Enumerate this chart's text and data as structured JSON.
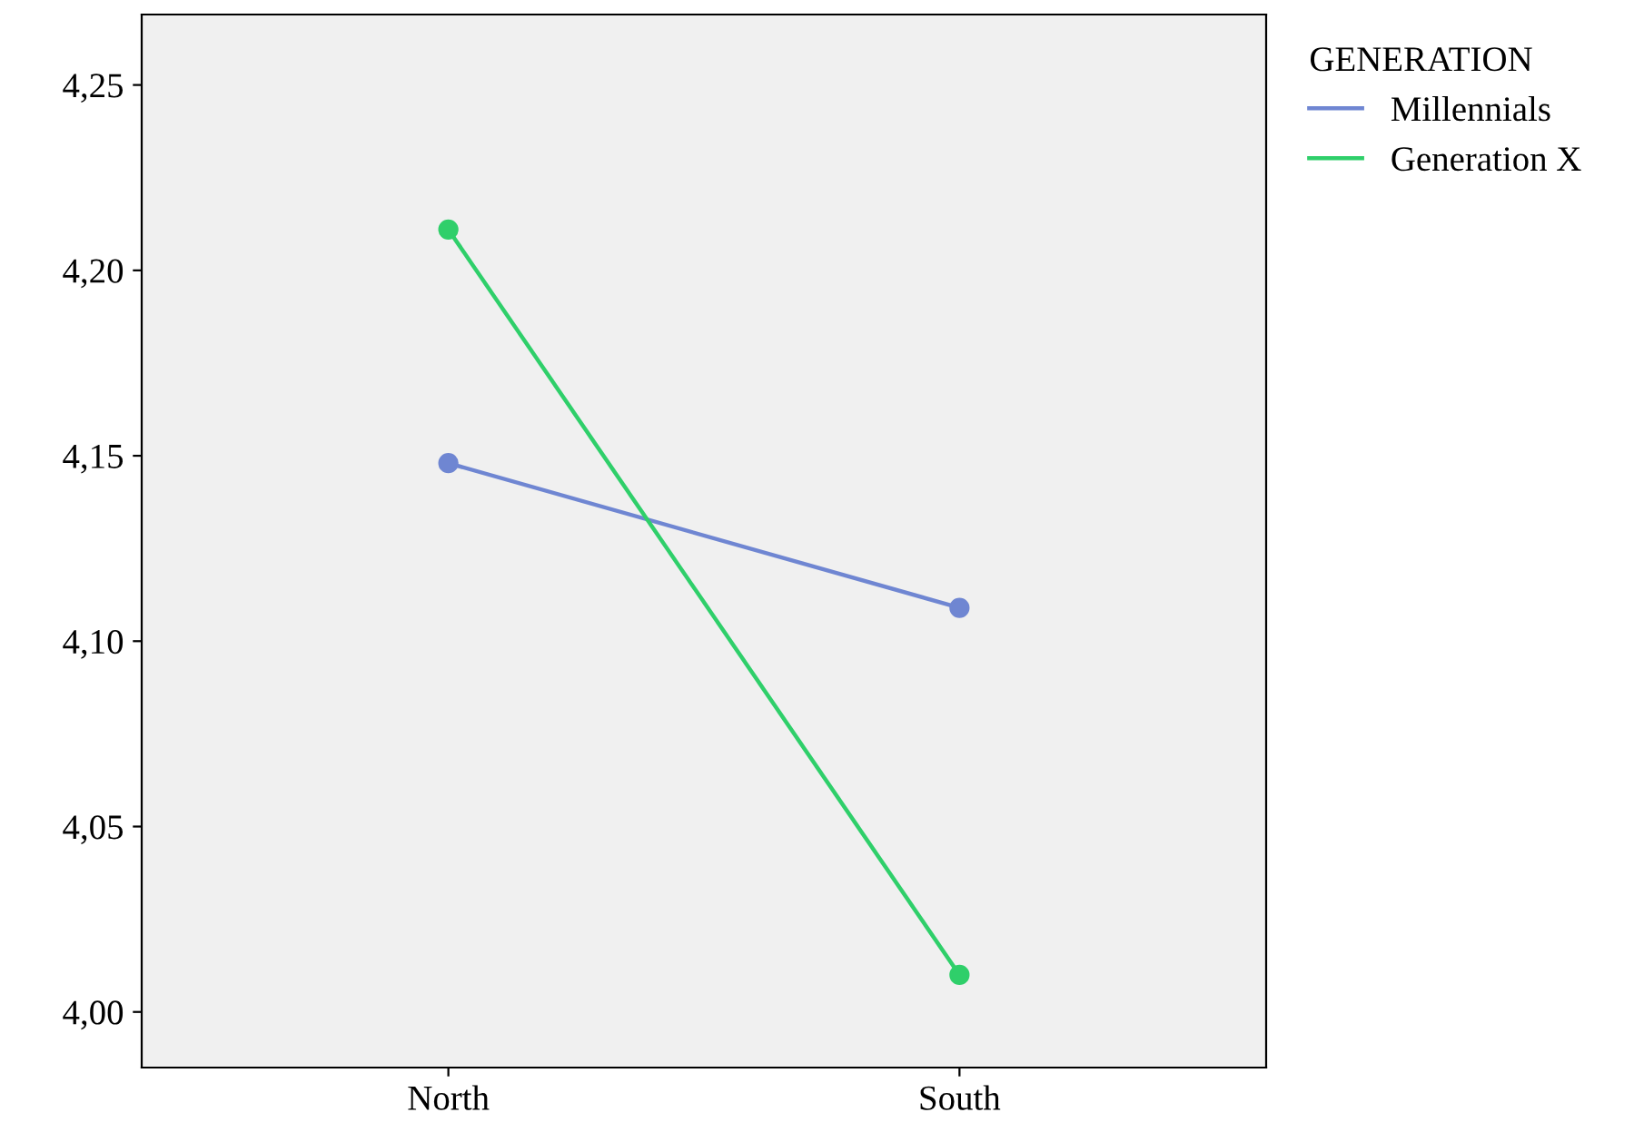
{
  "chart_data": {
    "type": "line",
    "categories": [
      "North",
      "South"
    ],
    "series": [
      {
        "name": "Millennials",
        "color": "#6f86d2",
        "values": [
          4.148,
          4.109
        ]
      },
      {
        "name": "Generation X",
        "color": "#2fcf6a",
        "values": [
          4.211,
          4.01
        ]
      }
    ],
    "legend_title": "GENERATION",
    "legend": "top right",
    "marker": "circle",
    "line_style": "solid",
    "grid": false,
    "ylim": [
      3.985,
      4.269
    ],
    "yticks": [
      {
        "value": 4.0,
        "label": "4,00"
      },
      {
        "value": 4.05,
        "label": "4,05"
      },
      {
        "value": 4.1,
        "label": "4,10"
      },
      {
        "value": 4.15,
        "label": "4,15"
      },
      {
        "value": 4.2,
        "label": "4,20"
      },
      {
        "value": 4.25,
        "label": "4,25"
      }
    ]
  }
}
